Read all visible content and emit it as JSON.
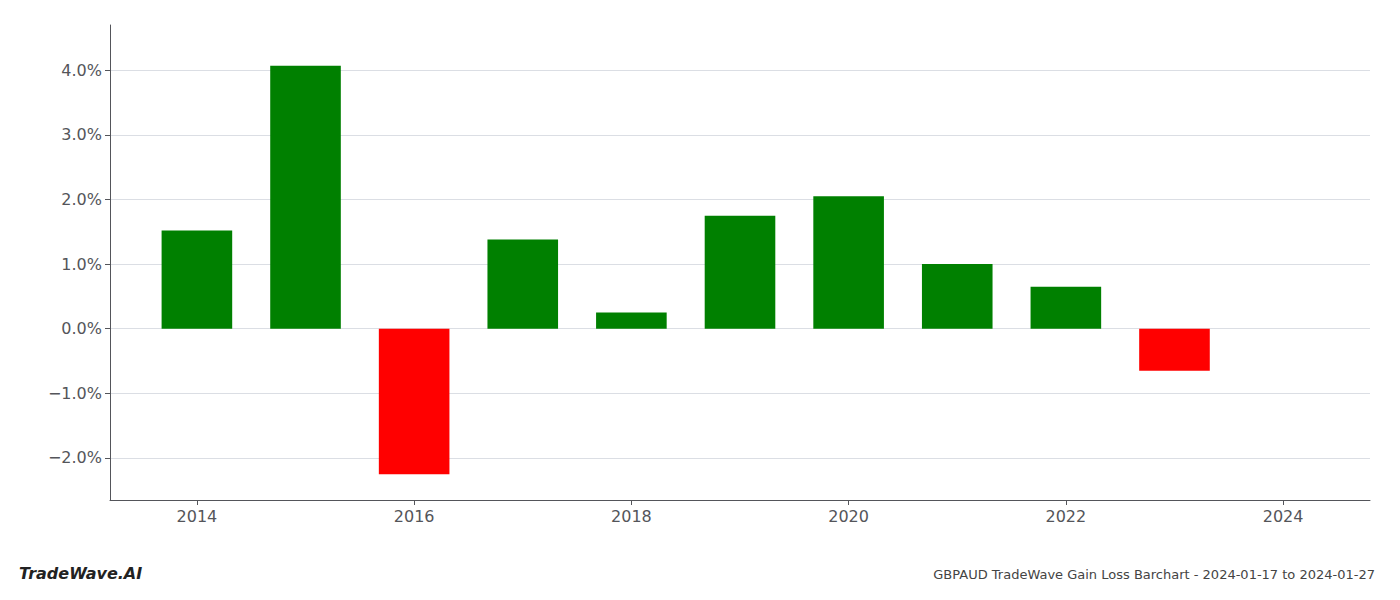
{
  "chart_data": {
    "type": "bar",
    "title": "GBPAUD TradeWave Gain Loss Barchart - 2024-01-17 to 2024-01-27",
    "annotations": [
      "TradeWave.AI"
    ],
    "x": [
      2014,
      2015,
      2016,
      2017,
      2018,
      2019,
      2020,
      2021,
      2022,
      2023
    ],
    "values": [
      0.0152,
      0.0407,
      -0.0225,
      0.0138,
      0.0025,
      0.0175,
      0.0205,
      0.01,
      0.0065,
      -0.0065
    ],
    "colors": [
      "#008000",
      "#008000",
      "#ff0000",
      "#008000",
      "#008000",
      "#008000",
      "#008000",
      "#008000",
      "#008000",
      "#ff0000"
    ],
    "xlim": [
      2013.2,
      2024.8
    ],
    "xticks": [
      2014,
      2016,
      2018,
      2020,
      2022,
      2024
    ],
    "ylim": [
      -0.0265,
      0.047
    ],
    "yticks": [
      {
        "value": -0.02,
        "label": "−2.0%"
      },
      {
        "value": -0.01,
        "label": "−1.0%"
      },
      {
        "value": 0.0,
        "label": "0.0%"
      },
      {
        "value": 0.01,
        "label": "1.0%"
      },
      {
        "value": 0.02,
        "label": "2.0%"
      },
      {
        "value": 0.03,
        "label": "3.0%"
      },
      {
        "value": 0.04,
        "label": "4.0%"
      }
    ],
    "grid": true
  }
}
